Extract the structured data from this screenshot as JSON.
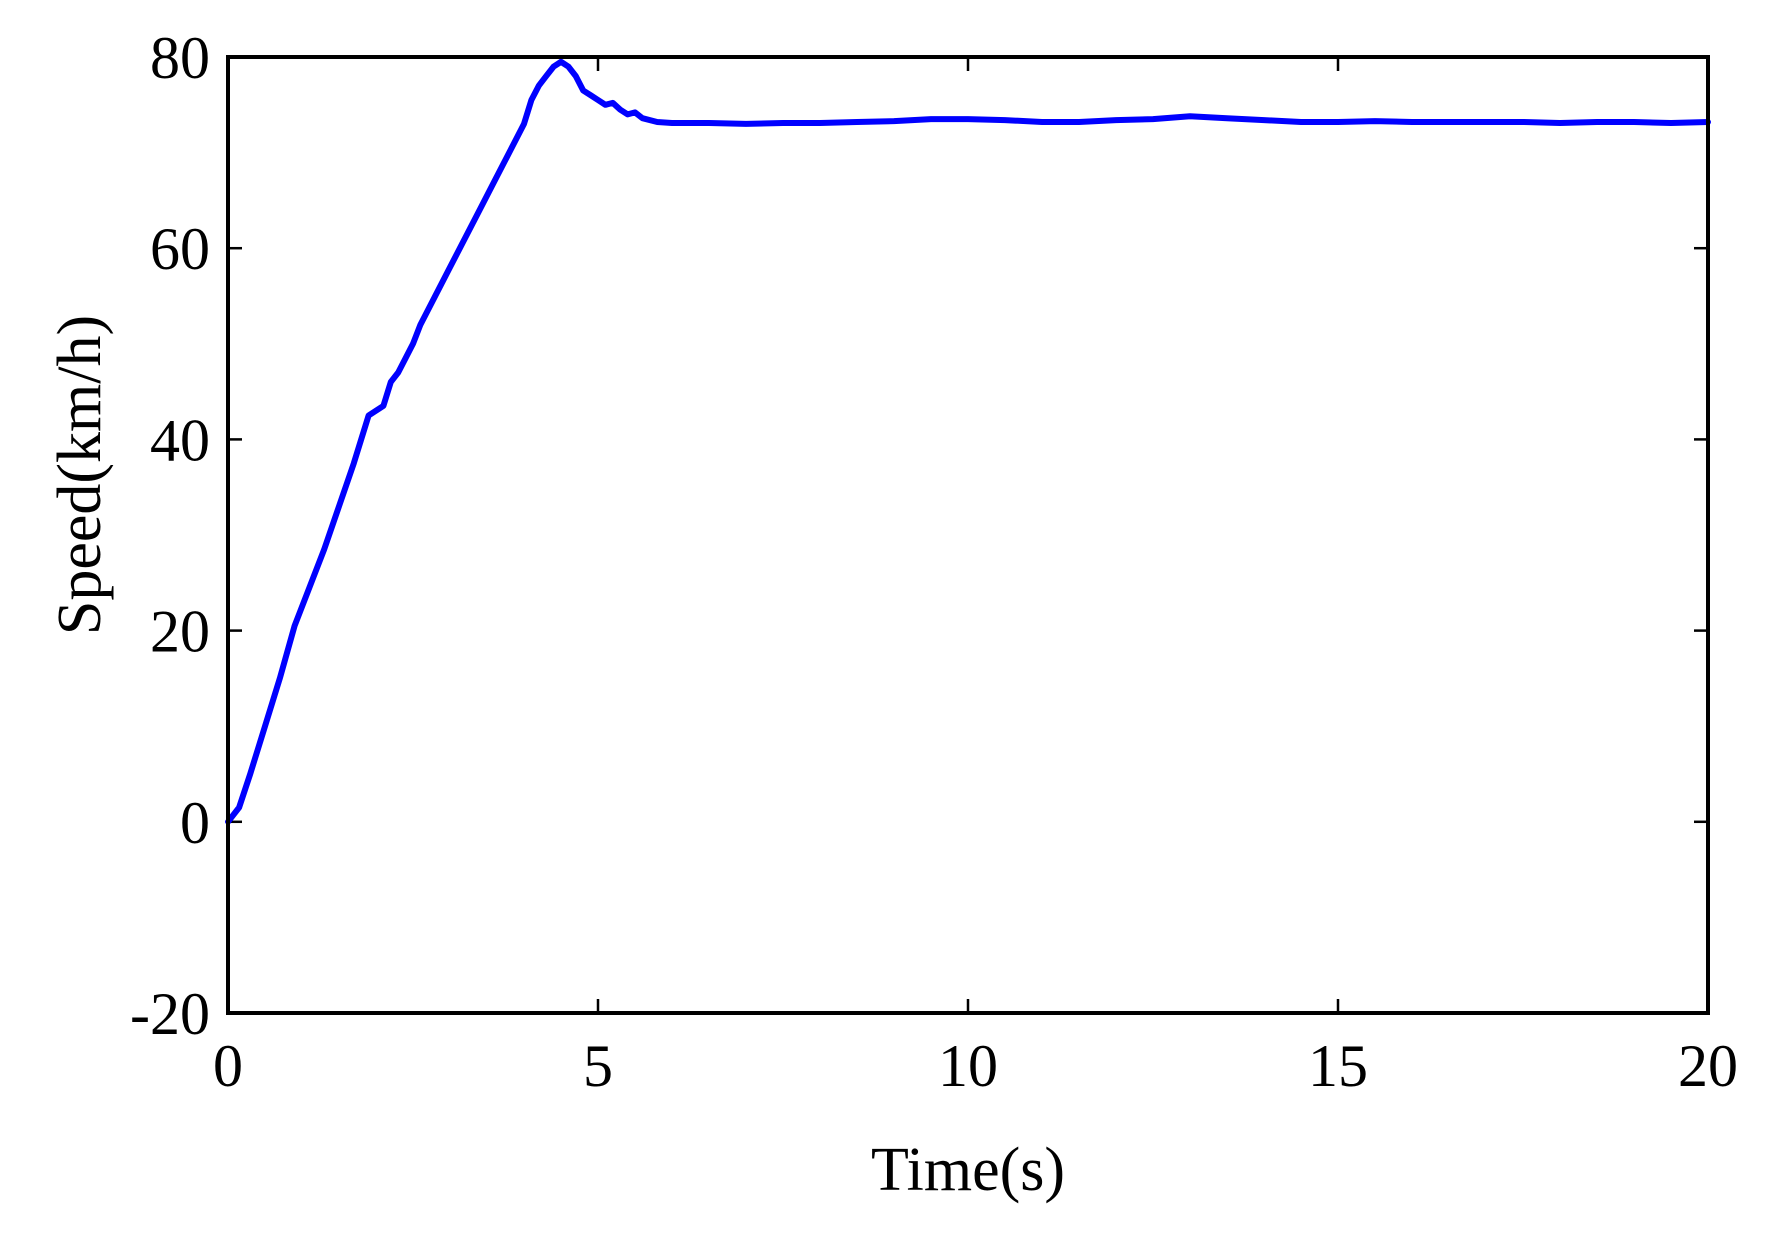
{
  "chart_data": {
    "type": "line",
    "title": "",
    "xlabel": "Time(s)",
    "ylabel": "Speed(km/h)",
    "xlim": [
      0,
      20
    ],
    "ylim": [
      -20,
      80
    ],
    "x_ticks": [
      0,
      5,
      10,
      15,
      20
    ],
    "x_tick_labels": [
      "0",
      "5",
      "10",
      "15",
      "20"
    ],
    "y_ticks": [
      -20,
      0,
      20,
      40,
      60,
      80
    ],
    "y_tick_labels": [
      "-20",
      "0",
      "20",
      "40",
      "60",
      "80"
    ],
    "grid": false,
    "legend": "none",
    "series": [
      {
        "color": "#0000ff",
        "x": [
          0,
          0.15,
          0.3,
          0.5,
          0.7,
          0.9,
          1.1,
          1.3,
          1.5,
          1.7,
          1.9,
          2.1,
          2.2,
          2.3,
          2.4,
          2.5,
          2.6,
          2.8,
          3.0,
          3.2,
          3.4,
          3.6,
          3.8,
          4.0,
          4.1,
          4.2,
          4.3,
          4.4,
          4.5,
          4.6,
          4.7,
          4.8,
          4.9,
          5.0,
          5.1,
          5.2,
          5.3,
          5.4,
          5.5,
          5.6,
          5.8,
          6.0,
          6.5,
          7.0,
          7.5,
          8.0,
          8.5,
          9.0,
          9.5,
          10.0,
          10.5,
          11.0,
          11.5,
          12.0,
          12.5,
          13.0,
          13.5,
          14.0,
          14.5,
          15.0,
          15.5,
          16.0,
          16.5,
          17.0,
          17.5,
          18.0,
          18.5,
          19.0,
          19.5,
          20.0
        ],
        "y": [
          0,
          1.5,
          5,
          10,
          15,
          20.5,
          24.5,
          28.5,
          33,
          37.5,
          42.5,
          43.5,
          46,
          47,
          48.5,
          50,
          52,
          55,
          58,
          61,
          64,
          67,
          70,
          73,
          75.5,
          77,
          78,
          79,
          79.5,
          79,
          78,
          76.5,
          76,
          75.5,
          75,
          75.2,
          74.5,
          74,
          74.2,
          73.6,
          73.2,
          73.1,
          73.1,
          73.0,
          73.1,
          73.1,
          73.2,
          73.3,
          73.5,
          73.5,
          73.4,
          73.2,
          73.2,
          73.4,
          73.5,
          73.8,
          73.6,
          73.4,
          73.2,
          73.2,
          73.3,
          73.2,
          73.2,
          73.2,
          73.2,
          73.1,
          73.2,
          73.2,
          73.1,
          73.2
        ]
      }
    ]
  }
}
